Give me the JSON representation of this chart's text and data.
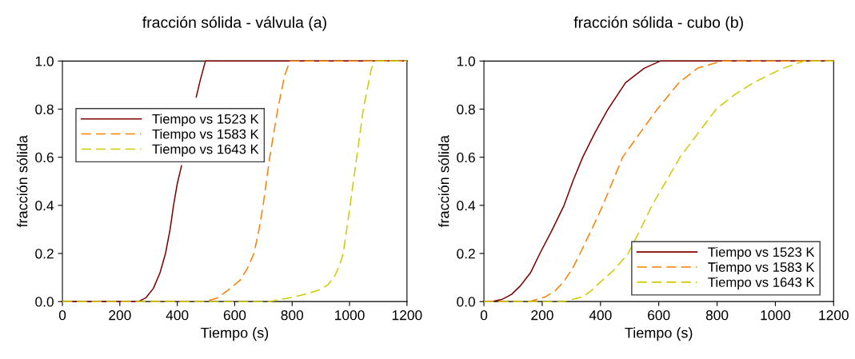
{
  "chart_data": [
    {
      "type": "line",
      "title": "fracción sólida - válvula (a)",
      "xlabel": "Tiempo (s)",
      "ylabel": "fracción sólida",
      "xlim": [
        0,
        1200
      ],
      "ylim": [
        0,
        1
      ],
      "xticks": [
        0,
        200,
        400,
        600,
        800,
        1000,
        1200
      ],
      "yticks": [
        {
          "value": 0,
          "label": "0.0"
        },
        {
          "value": 0.2,
          "label": "0.2"
        },
        {
          "value": 0.4,
          "label": "0.4"
        },
        {
          "value": 0.6,
          "label": "0.6"
        },
        {
          "value": 0.8,
          "label": "0.8"
        },
        {
          "value": 1,
          "label": "1.0"
        }
      ],
      "grid": false,
      "legend": "upper left",
      "marker": "none",
      "series": [
        {
          "name": "Tiempo vs 1523 K",
          "color": "#800000",
          "line_style": "solid",
          "x": [
            0,
            265,
            290,
            317,
            340,
            359,
            375,
            387,
            400,
            415,
            440,
            466,
            480,
            498,
            1200
          ],
          "values": [
            0,
            0,
            0.015,
            0.055,
            0.12,
            0.2,
            0.3,
            0.4,
            0.49,
            0.565,
            null,
            0.85,
            0.92,
            1,
            1
          ]
        },
        {
          "name": "Tiempo vs 1583 K",
          "color": "#ff8000",
          "line_style": "dashed",
          "x": [
            0,
            498,
            540,
            573,
            620,
            645,
            667,
            685,
            699,
            722,
            750,
            774,
            792,
            1200
          ],
          "values": [
            0,
            0,
            0.015,
            0.044,
            0.09,
            0.14,
            0.2,
            0.3,
            0.4,
            0.6,
            0.8,
            0.94,
            1,
            1
          ]
        },
        {
          "name": "Tiempo vs 1643 K",
          "color": "#cccc00",
          "line_style": "dashed",
          "x": [
            0,
            722,
            797,
            850,
            899,
            925,
            946,
            965,
            978,
            1002,
            1025,
            1048,
            1076,
            1090,
            1200
          ],
          "values": [
            0,
            0,
            0.017,
            0.032,
            0.05,
            0.07,
            0.1,
            0.15,
            0.2,
            0.4,
            0.6,
            0.8,
            0.97,
            1,
            1
          ]
        }
      ]
    },
    {
      "type": "line",
      "title": "fracción sólida - cubo (b)",
      "xlabel": "Tiempo (s)",
      "ylabel": "fracción sólida",
      "xlim": [
        0,
        1200
      ],
      "ylim": [
        0,
        1
      ],
      "xticks": [
        0,
        200,
        400,
        600,
        800,
        1000,
        1200
      ],
      "yticks": [
        {
          "value": 0,
          "label": "0.0"
        },
        {
          "value": 0.2,
          "label": "0.2"
        },
        {
          "value": 0.4,
          "label": "0.4"
        },
        {
          "value": 0.6,
          "label": "0.6"
        },
        {
          "value": 0.8,
          "label": "0.8"
        },
        {
          "value": 1,
          "label": "1.0"
        }
      ],
      "grid": false,
      "legend": "bottom right",
      "marker": "none",
      "series": [
        {
          "name": "Tiempo vs 1523 K",
          "color": "#800000",
          "line_style": "solid",
          "x": [
            0,
            27,
            64,
            95,
            124,
            160,
            192,
            235,
            275,
            305,
            339,
            380,
            426,
            486,
            550,
            605,
            1200
          ],
          "values": [
            0,
            0,
            0.01,
            0.03,
            0.064,
            0.12,
            0.2,
            0.3,
            0.4,
            0.5,
            0.6,
            0.7,
            0.8,
            0.91,
            0.97,
            1,
            1
          ]
        },
        {
          "name": "Tiempo vs 1583 K",
          "color": "#ff8000",
          "line_style": "dashed",
          "x": [
            0,
            156,
            211,
            245,
            275,
            305,
            330,
            370,
            408,
            442,
            476,
            535,
            595,
            669,
            733,
            815,
            1200
          ],
          "values": [
            0,
            0,
            0.02,
            0.045,
            0.085,
            0.14,
            0.2,
            0.3,
            0.4,
            0.5,
            0.6,
            0.7,
            0.8,
            0.91,
            0.97,
            1,
            1
          ]
        },
        {
          "name": "Tiempo vs 1643 K",
          "color": "#cccc00",
          "line_style": "dashed",
          "x": [
            0,
            275,
            339,
            368,
            394,
            445,
            495,
            537,
            577,
            625,
            673,
            735,
            797,
            860,
            925,
            1026,
            1099,
            1200
          ],
          "values": [
            0,
            0,
            0.02,
            0.045,
            0.075,
            0.13,
            0.2,
            0.3,
            0.4,
            0.5,
            0.6,
            0.7,
            0.8,
            0.86,
            0.91,
            0.97,
            1,
            1
          ]
        }
      ]
    }
  ]
}
